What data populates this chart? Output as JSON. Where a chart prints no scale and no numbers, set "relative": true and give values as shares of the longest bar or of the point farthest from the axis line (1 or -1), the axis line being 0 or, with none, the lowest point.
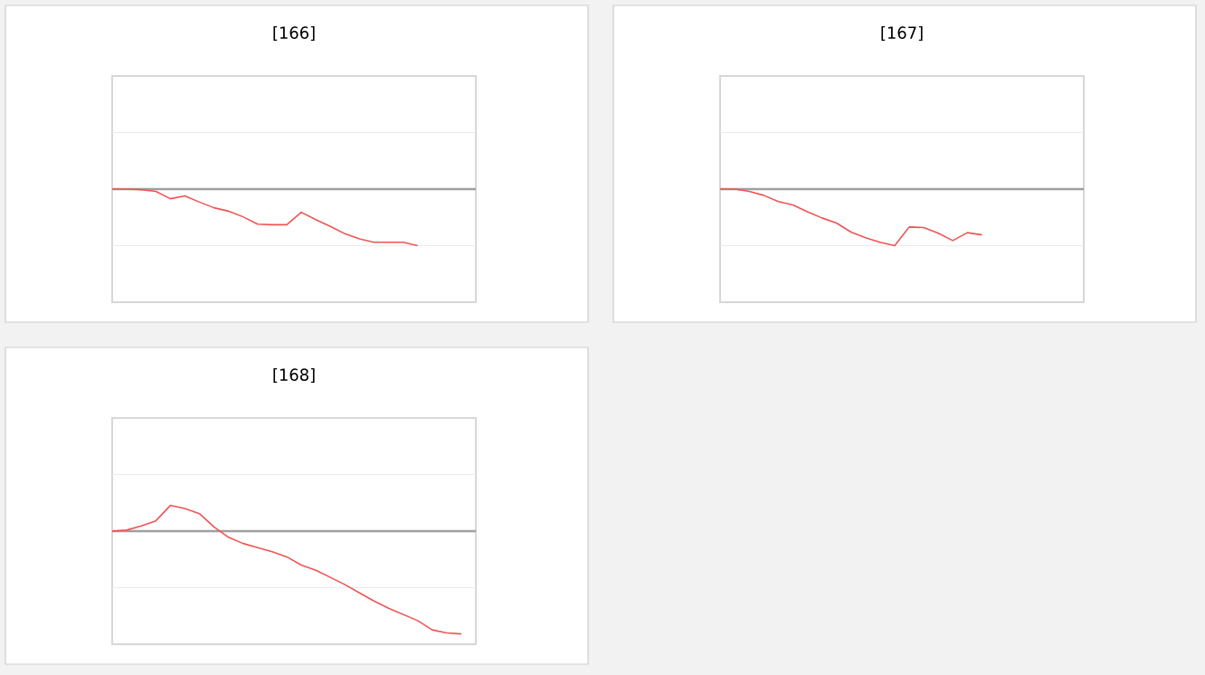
{
  "chart_data": [
    {
      "type": "line",
      "title": "[166]",
      "relative": true,
      "ref_lines": [
        {
          "axis": "y",
          "value": 1,
          "color": "#ebebeb"
        },
        {
          "axis": "y",
          "value": -1,
          "color": "#ebebeb"
        }
      ],
      "color": "#f05454",
      "categories": [
        null,
        null,
        null,
        null,
        null,
        null,
        null,
        null,
        null,
        null,
        null,
        null,
        null,
        null,
        null,
        null,
        null,
        null,
        null,
        null,
        null,
        null,
        null,
        null,
        null,
        null
      ],
      "values": [
        0,
        0,
        -0.01,
        -0.04,
        -0.17,
        -0.12,
        -0.23,
        -0.33,
        -0.39,
        -0.49,
        -0.62,
        -0.63,
        -0.63,
        -0.41,
        -0.54,
        -0.66,
        -0.79,
        -0.88,
        -0.94,
        -0.94,
        -0.94,
        -1,
        null,
        null,
        null,
        null
      ]
    },
    {
      "type": "line",
      "title": "[167]",
      "relative": true,
      "ref_lines": [
        {
          "axis": "y",
          "value": 1,
          "color": "#ebebeb"
        },
        {
          "axis": "y",
          "value": -1,
          "color": "#ebebeb"
        }
      ],
      "color": "#f05454",
      "categories": [
        null,
        null,
        null,
        null,
        null,
        null,
        null,
        null,
        null,
        null,
        null,
        null,
        null,
        null,
        null,
        null,
        null,
        null,
        null,
        null,
        null,
        null,
        null,
        null,
        null,
        null
      ],
      "values": [
        0,
        0,
        -0.04,
        -0.11,
        -0.22,
        -0.28,
        -0.4,
        -0.51,
        -0.6,
        -0.76,
        -0.86,
        -0.94,
        -1,
        -0.67,
        -0.68,
        -0.78,
        -0.91,
        -0.77,
        -0.81,
        null,
        null,
        null,
        null,
        null,
        null,
        null
      ]
    },
    {
      "type": "line",
      "title": "[168]",
      "relative": true,
      "ref_lines": [
        {
          "axis": "y",
          "value": 0.55,
          "color": "#ebebeb"
        },
        {
          "axis": "y",
          "value": -0.55,
          "color": "#ebebeb"
        }
      ],
      "color": "#f05454",
      "categories": [
        null,
        null,
        null,
        null,
        null,
        null,
        null,
        null,
        null,
        null,
        null,
        null,
        null,
        null,
        null,
        null,
        null,
        null,
        null,
        null,
        null,
        null,
        null,
        null,
        null,
        null
      ],
      "values": [
        0,
        0.01,
        0.05,
        0.1,
        0.25,
        0.22,
        0.17,
        0.04,
        -0.06,
        -0.12,
        -0.16,
        -0.2,
        -0.25,
        -0.33,
        -0.38,
        -0.45,
        -0.52,
        -0.6,
        -0.68,
        -0.75,
        -0.81,
        -0.87,
        -0.96,
        -0.99,
        -1,
        null
      ]
    }
  ]
}
